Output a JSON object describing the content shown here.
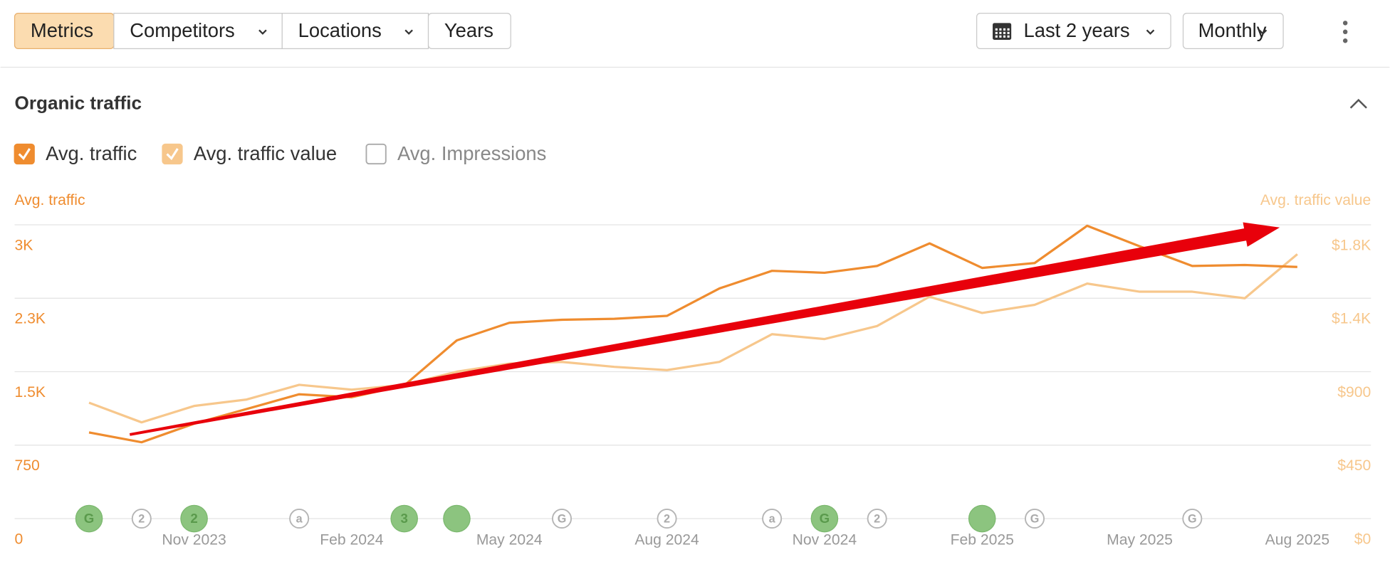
{
  "toolbar": {
    "tabs": [
      {
        "label": "Metrics",
        "active": true,
        "dropdown": false
      },
      {
        "label": "Competitors",
        "active": false,
        "dropdown": true
      },
      {
        "label": "Locations",
        "active": false,
        "dropdown": true
      },
      {
        "label": "Years",
        "active": false,
        "dropdown": false
      }
    ],
    "date_range": "Last 2 years",
    "granularity": "Monthly"
  },
  "section": {
    "title": "Organic traffic",
    "unchecked_options": [
      "Avg. Impressions"
    ]
  },
  "chart_data": {
    "type": "line",
    "ylabel": "Avg. traffic",
    "y2label": "Avg. traffic value",
    "categories": [
      null,
      null,
      "Nov 2023",
      null,
      null,
      "Feb 2024",
      null,
      null,
      "May 2024",
      null,
      null,
      "Aug 2024",
      null,
      null,
      "Nov 2024",
      null,
      null,
      "Feb 2025",
      null,
      null,
      "May 2025",
      null,
      null,
      "Aug 2025"
    ],
    "series": [
      {
        "name": "Avg. traffic",
        "color": "#ef8c2f",
        "checked": true,
        "values": [
          880,
          780,
          970,
          1120,
          1270,
          1240,
          1360,
          1820,
          2000,
          2030,
          2040,
          2070,
          2350,
          2530,
          2510,
          2580,
          2810,
          2560,
          2610,
          2990,
          2780,
          2580,
          2590,
          2570
        ]
      },
      {
        "name": "Avg. traffic value",
        "color": "#f7c78c",
        "checked": true,
        "axis": "y2",
        "values": [
          710,
          590,
          690,
          730,
          820,
          790,
          820,
          900,
          950,
          960,
          930,
          910,
          960,
          1130,
          1100,
          1180,
          1360,
          1260,
          1310,
          1440,
          1390,
          1390,
          1350,
          1620
        ]
      }
    ],
    "ylim": [
      0,
      3000
    ],
    "yticks": [
      0,
      750,
      {
        "value": 1500,
        "label": "1.5K"
      },
      {
        "value": 2250,
        "label": "2.3K"
      },
      {
        "value": 3000,
        "label": "3K"
      }
    ],
    "y2lim": [
      0,
      1800
    ],
    "y2ticks": [
      {
        "value": 0,
        "label": "$0"
      },
      {
        "value": 450,
        "label": "$450"
      },
      {
        "value": 900,
        "label": "$900"
      },
      {
        "value": 1350,
        "label": "$1.4K"
      },
      {
        "value": 1800,
        "label": "$1.8K"
      }
    ],
    "grid": true,
    "events": [
      {
        "x": 0,
        "label": "G",
        "filled": true
      },
      {
        "x": 1,
        "label": "2",
        "filled": false
      },
      {
        "x": 2,
        "label": "2",
        "filled": true
      },
      {
        "x": 4,
        "label": "a",
        "filled": false
      },
      {
        "x": 6,
        "label": "3",
        "filled": true
      },
      {
        "x": 7,
        "label": null,
        "filled": true
      },
      {
        "x": 9,
        "label": "G",
        "filled": false
      },
      {
        "x": 11,
        "label": "2",
        "filled": false
      },
      {
        "x": 13,
        "label": "a",
        "filled": false
      },
      {
        "x": 14,
        "label": "G",
        "filled": true
      },
      {
        "x": 15,
        "label": "2",
        "filled": false
      },
      {
        "x": 17,
        "label": null,
        "filled": true
      },
      {
        "x": 18,
        "label": "G",
        "filled": false
      },
      {
        "x": 21,
        "label": "G",
        "filled": false
      }
    ]
  }
}
